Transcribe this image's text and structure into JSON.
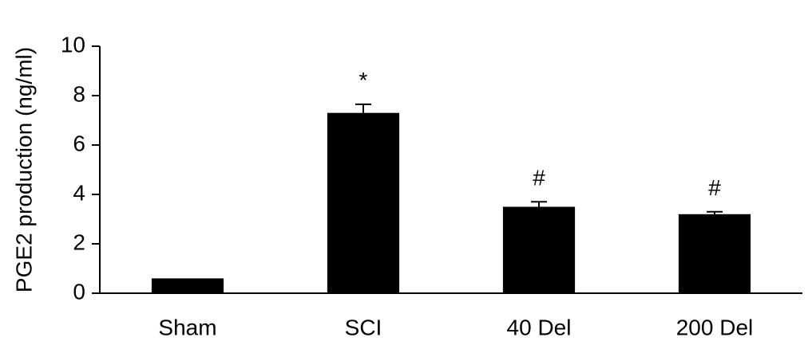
{
  "chart_data": {
    "type": "bar",
    "y_label": "PGE2 production (ng/ml)",
    "categories": [
      "Sham",
      "SCI",
      "40 Del",
      "200 Del"
    ],
    "values": [
      0.6,
      7.3,
      3.5,
      3.2
    ],
    "errors": [
      0,
      0.35,
      0.2,
      0.1
    ],
    "annotations": [
      null,
      "*",
      "#",
      "#"
    ],
    "color": "#000000",
    "ylim": [
      0,
      10
    ],
    "yticks": [
      0,
      2,
      4,
      6,
      8,
      10
    ],
    "grid": false
  }
}
